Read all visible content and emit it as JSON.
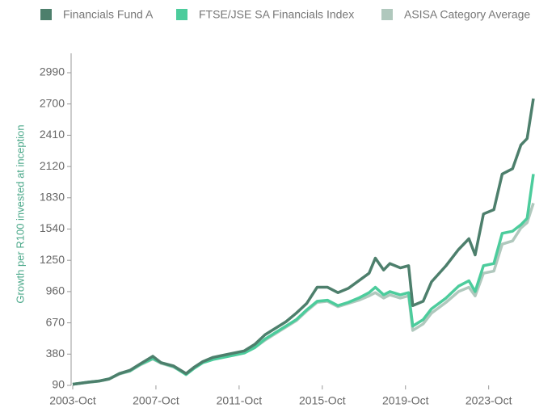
{
  "chart_data": {
    "type": "line",
    "y_label": "Growth per R100 invested at inception",
    "x": [
      2003.75,
      2004.5,
      2005,
      2005.5,
      2006,
      2006.5,
      2007,
      2007.6,
      2008,
      2008.6,
      2009.2,
      2009.6,
      2010,
      2010.5,
      2011,
      2011.5,
      2012,
      2012.5,
      2013,
      2013.5,
      2014,
      2014.5,
      2015,
      2015.5,
      2016,
      2016.5,
      2017,
      2017.5,
      2018,
      2018.3,
      2018.7,
      2019,
      2019.5,
      2019.9,
      2020.1,
      2020.6,
      2021,
      2021.7,
      2022.3,
      2022.8,
      2023.1,
      2023.5,
      2024,
      2024.4,
      2024.9,
      2025.3,
      2025.6,
      2025.9
    ],
    "series": [
      {
        "name": "Financials Fund A",
        "color": "#4d7f6c",
        "values": [
          100,
          120,
          130,
          150,
          200,
          230,
          290,
          360,
          300,
          270,
          200,
          260,
          310,
          350,
          370,
          390,
          410,
          470,
          560,
          620,
          680,
          760,
          850,
          1000,
          1000,
          950,
          990,
          1060,
          1130,
          1270,
          1160,
          1220,
          1180,
          1200,
          830,
          870,
          1050,
          1200,
          1350,
          1450,
          1300,
          1680,
          1720,
          2050,
          2100,
          2320,
          2380,
          2750
        ]
      },
      {
        "name": "FTSE/JSE SA Financials Index",
        "color": "#4ccc9c",
        "values": [
          100,
          120,
          130,
          150,
          200,
          225,
          285,
          340,
          300,
          265,
          190,
          250,
          300,
          330,
          350,
          370,
          390,
          440,
          520,
          580,
          640,
          700,
          790,
          870,
          880,
          830,
          860,
          900,
          950,
          1000,
          930,
          960,
          930,
          950,
          640,
          700,
          800,
          900,
          1010,
          1060,
          960,
          1200,
          1220,
          1500,
          1520,
          1580,
          1640,
          2050
        ]
      },
      {
        "name": "ASISA Category Average",
        "color": "#b0c8bd",
        "values": [
          100,
          118,
          128,
          148,
          195,
          222,
          280,
          335,
          295,
          260,
          195,
          255,
          305,
          340,
          360,
          380,
          395,
          440,
          510,
          570,
          630,
          690,
          780,
          860,
          870,
          820,
          850,
          880,
          920,
          950,
          900,
          930,
          900,
          920,
          600,
          660,
          760,
          860,
          960,
          1000,
          920,
          1130,
          1150,
          1400,
          1430,
          1550,
          1600,
          1780
        ]
      }
    ],
    "xlim": [
      2003.75,
      2025.9
    ],
    "xticks": [
      {
        "value": 2003.75,
        "label": "2003-Oct"
      },
      {
        "value": 2007.75,
        "label": "2007-Oct"
      },
      {
        "value": 2011.75,
        "label": "2011-Oct"
      },
      {
        "value": 2015.75,
        "label": "2015-Oct"
      },
      {
        "value": 2019.75,
        "label": "2019-Oct"
      },
      {
        "value": 2023.75,
        "label": "2023-Oct"
      }
    ],
    "ylim": [
      90,
      2990
    ],
    "yticks": [
      90,
      380,
      670,
      960,
      1250,
      1540,
      1830,
      2120,
      2410,
      2700,
      2990
    ],
    "legend": "top"
  }
}
